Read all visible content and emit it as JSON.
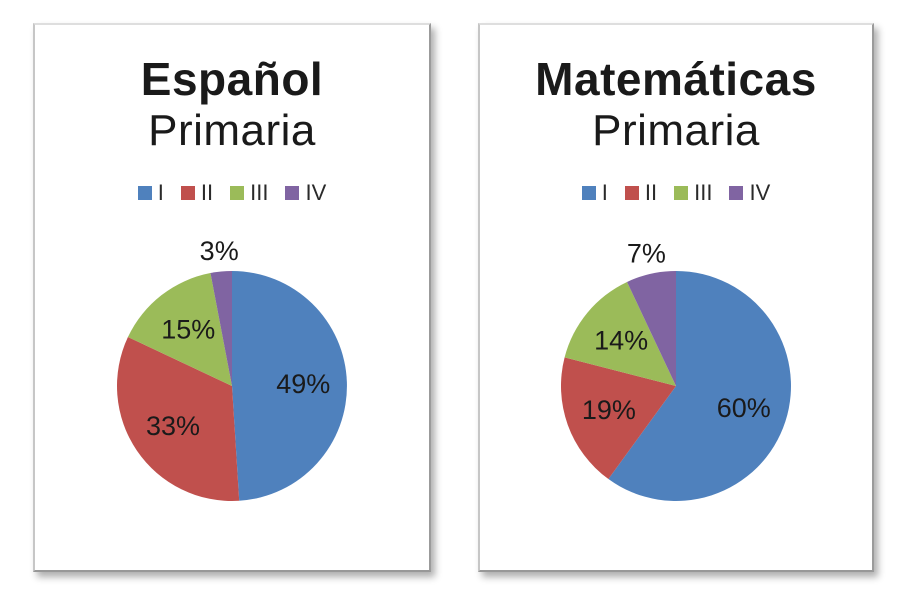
{
  "page": {
    "background": "#ffffff",
    "text_color": "#1a1a1a"
  },
  "chart_data": [
    {
      "type": "pie",
      "title": "Español",
      "subtitle": "Primaria",
      "categories": [
        "I",
        "II",
        "III",
        "IV"
      ],
      "values": [
        49,
        33,
        15,
        3
      ],
      "labels": [
        "49%",
        "33%",
        "15%",
        "3%"
      ],
      "colors": [
        "#4F81BD",
        "#C0504D",
        "#9BBB59",
        "#8064A2"
      ],
      "start_angle_deg": 0,
      "direction": "clockwise",
      "legend_position": "top",
      "small_slice_labels_outside": true
    },
    {
      "type": "pie",
      "title": "Matemáticas",
      "subtitle": "Primaria",
      "categories": [
        "I",
        "II",
        "III",
        "IV"
      ],
      "values": [
        60,
        19,
        14,
        7
      ],
      "labels": [
        "60%",
        "19%",
        "14%",
        "7%"
      ],
      "colors": [
        "#4F81BD",
        "#C0504D",
        "#9BBB59",
        "#8064A2"
      ],
      "start_angle_deg": 0,
      "direction": "clockwise",
      "legend_position": "top",
      "small_slice_labels_outside": true
    }
  ]
}
